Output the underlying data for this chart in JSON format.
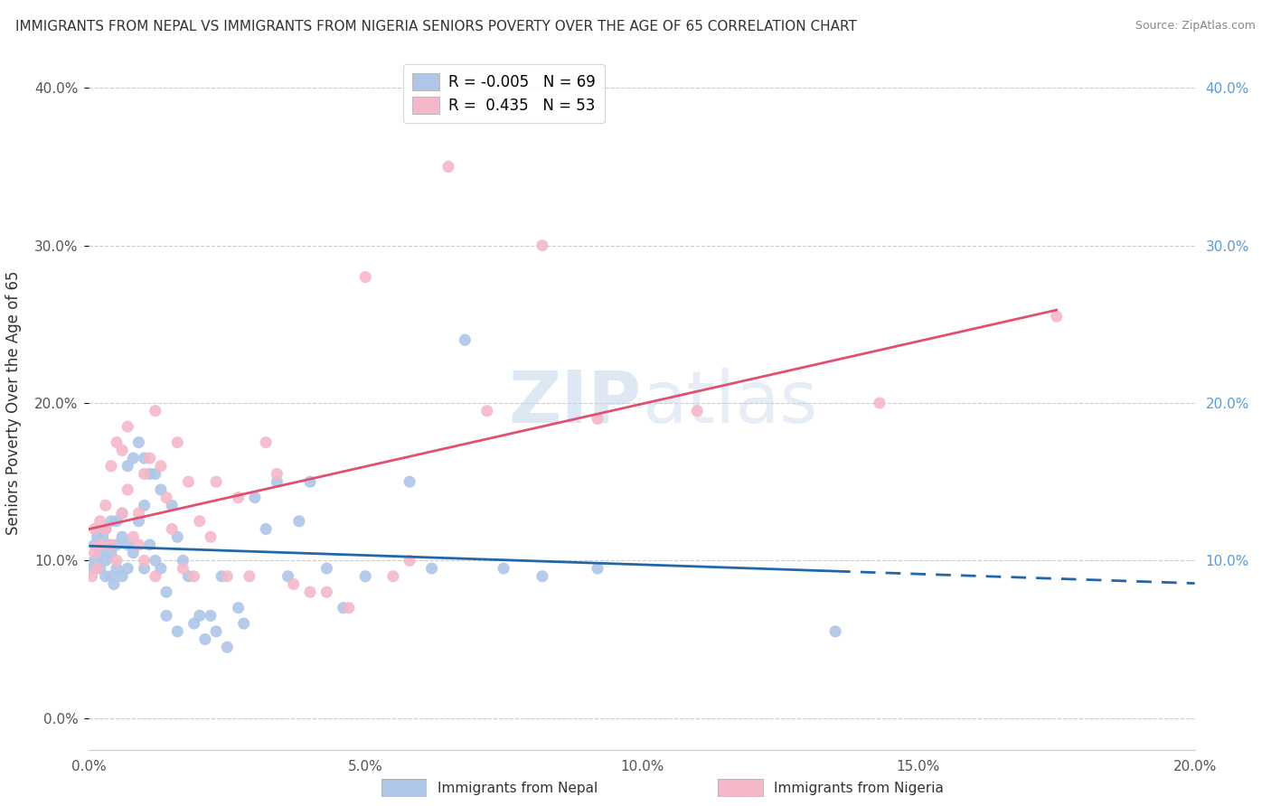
{
  "title": "IMMIGRANTS FROM NEPAL VS IMMIGRANTS FROM NIGERIA SENIORS POVERTY OVER THE AGE OF 65 CORRELATION CHART",
  "source": "Source: ZipAtlas.com",
  "ylabel": "Seniors Poverty Over the Age of 65",
  "xlim": [
    0.0,
    0.2
  ],
  "ylim": [
    -0.02,
    0.42
  ],
  "ylim_display": [
    0.0,
    0.42
  ],
  "xticks": [
    0.0,
    0.05,
    0.1,
    0.15,
    0.2
  ],
  "yticks_left": [
    0.0,
    0.1,
    0.2,
    0.3,
    0.4
  ],
  "yticks_right": [
    0.1,
    0.2,
    0.3,
    0.4
  ],
  "grid_color": "#cccccc",
  "background_color": "#ffffff",
  "watermark": "ZIPatlas",
  "legend_labels": [
    "Immigrants from Nepal",
    "Immigrants from Nigeria"
  ],
  "nepal_color": "#aec6e8",
  "nigeria_color": "#f4b8c8",
  "nepal_line_color": "#2266aa",
  "nigeria_line_color": "#e05070",
  "R_nepal": -0.005,
  "N_nepal": 69,
  "R_nigeria": 0.435,
  "N_nigeria": 53,
  "nepal_x": [
    0.0005,
    0.001,
    0.001,
    0.0015,
    0.002,
    0.002,
    0.0025,
    0.003,
    0.003,
    0.003,
    0.0035,
    0.004,
    0.004,
    0.004,
    0.0045,
    0.005,
    0.005,
    0.005,
    0.006,
    0.006,
    0.006,
    0.007,
    0.007,
    0.007,
    0.008,
    0.008,
    0.009,
    0.009,
    0.01,
    0.01,
    0.01,
    0.011,
    0.011,
    0.012,
    0.012,
    0.013,
    0.013,
    0.014,
    0.014,
    0.015,
    0.016,
    0.016,
    0.017,
    0.018,
    0.019,
    0.02,
    0.021,
    0.022,
    0.023,
    0.024,
    0.025,
    0.027,
    0.028,
    0.03,
    0.032,
    0.034,
    0.036,
    0.038,
    0.04,
    0.043,
    0.046,
    0.05,
    0.058,
    0.062,
    0.068,
    0.075,
    0.082,
    0.092,
    0.135
  ],
  "nepal_y": [
    0.095,
    0.1,
    0.11,
    0.115,
    0.105,
    0.095,
    0.115,
    0.12,
    0.1,
    0.09,
    0.11,
    0.125,
    0.105,
    0.09,
    0.085,
    0.125,
    0.11,
    0.095,
    0.13,
    0.115,
    0.09,
    0.16,
    0.11,
    0.095,
    0.165,
    0.105,
    0.175,
    0.125,
    0.165,
    0.135,
    0.095,
    0.155,
    0.11,
    0.155,
    0.1,
    0.145,
    0.095,
    0.08,
    0.065,
    0.135,
    0.115,
    0.055,
    0.1,
    0.09,
    0.06,
    0.065,
    0.05,
    0.065,
    0.055,
    0.09,
    0.045,
    0.07,
    0.06,
    0.14,
    0.12,
    0.15,
    0.09,
    0.125,
    0.15,
    0.095,
    0.07,
    0.09,
    0.15,
    0.095,
    0.24,
    0.095,
    0.09,
    0.095,
    0.055
  ],
  "nigeria_x": [
    0.0005,
    0.001,
    0.001,
    0.0015,
    0.002,
    0.002,
    0.003,
    0.003,
    0.004,
    0.004,
    0.005,
    0.005,
    0.006,
    0.006,
    0.007,
    0.007,
    0.008,
    0.009,
    0.009,
    0.01,
    0.01,
    0.011,
    0.012,
    0.012,
    0.013,
    0.014,
    0.015,
    0.016,
    0.017,
    0.018,
    0.019,
    0.02,
    0.022,
    0.023,
    0.025,
    0.027,
    0.029,
    0.032,
    0.034,
    0.037,
    0.04,
    0.043,
    0.047,
    0.05,
    0.055,
    0.058,
    0.065,
    0.072,
    0.082,
    0.092,
    0.11,
    0.143,
    0.175
  ],
  "nigeria_y": [
    0.09,
    0.105,
    0.12,
    0.095,
    0.125,
    0.11,
    0.12,
    0.135,
    0.11,
    0.16,
    0.1,
    0.175,
    0.13,
    0.17,
    0.145,
    0.185,
    0.115,
    0.13,
    0.11,
    0.1,
    0.155,
    0.165,
    0.09,
    0.195,
    0.16,
    0.14,
    0.12,
    0.175,
    0.095,
    0.15,
    0.09,
    0.125,
    0.115,
    0.15,
    0.09,
    0.14,
    0.09,
    0.175,
    0.155,
    0.085,
    0.08,
    0.08,
    0.07,
    0.28,
    0.09,
    0.1,
    0.35,
    0.195,
    0.3,
    0.19,
    0.195,
    0.2,
    0.255
  ]
}
